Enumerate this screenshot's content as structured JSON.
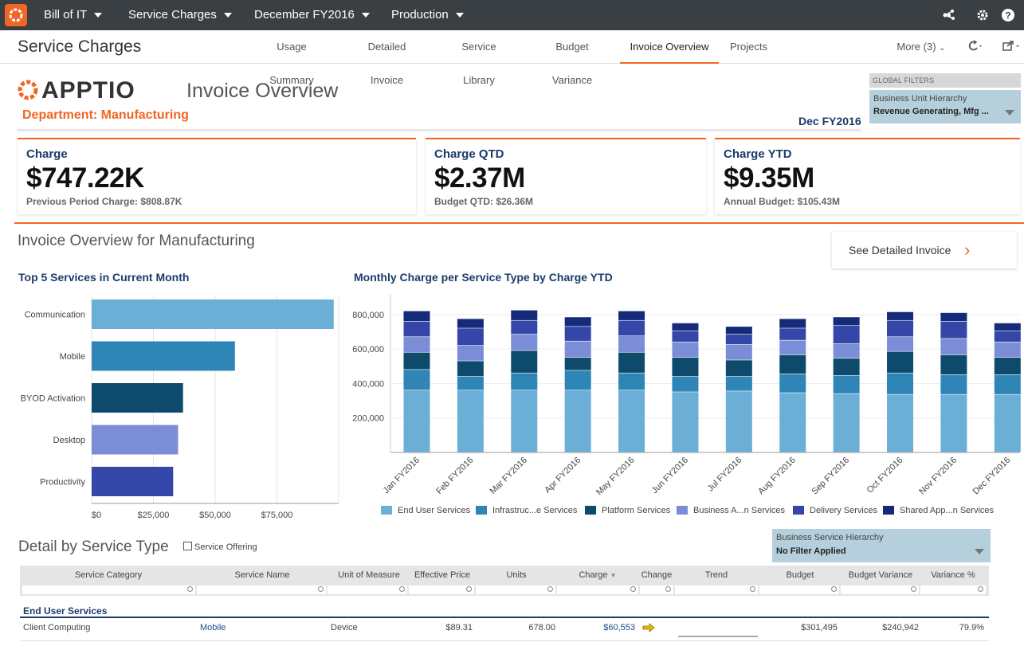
{
  "topbar": {
    "nav": [
      "Bill of IT",
      "Service Charges",
      "December FY2016",
      "Production"
    ],
    "icons": [
      "apptio-logo-icon",
      "caret-down-icon",
      "network-icon",
      "gear-icon",
      "help-icon"
    ]
  },
  "subbar": {
    "title": "Service Charges",
    "tabs": [
      "Usage Summary",
      "Detailed Invoice",
      "Service Library",
      "Budget Variance",
      "Invoice Overview",
      "Projects"
    ],
    "active_tab": "Invoice Overview",
    "more": "More (3)"
  },
  "header": {
    "brand": "APPTIO",
    "page_title": "Invoice Overview",
    "department": "Department: Manufacturing",
    "period": "Dec FY2016"
  },
  "global_filters": {
    "label": "GLOBAL FILTERS",
    "filter_label": "Business Unit Hierarchy",
    "filter_value": "Revenue Generating, Mfg ..."
  },
  "kpis": [
    {
      "label": "Charge",
      "value": "$747.22K",
      "sub": "Previous Period Charge: $808.87K"
    },
    {
      "label": "Charge QTD",
      "value": "$2.37M",
      "sub": "Budget QTD: $26.36M"
    },
    {
      "label": "Charge YTD",
      "value": "$9.35M",
      "sub": "Annual Budget: $105.43M"
    }
  ],
  "overview": {
    "title": "Invoice Overview for Manufacturing",
    "detail_button": "See Detailed Invoice"
  },
  "chart_data": [
    {
      "type": "bar",
      "orientation": "horizontal",
      "title": "Top 5 Services in Current Month",
      "categories": [
        "Communication",
        "Mobile",
        "BYOD Activation",
        "Desktop",
        "Productivity"
      ],
      "values": [
        98000,
        58000,
        37000,
        35000,
        33000
      ],
      "colors": [
        "#6baed6",
        "#2f86b6",
        "#0d4a6b",
        "#7b8dd6",
        "#3447a8"
      ],
      "xticks": [
        "$0",
        "$25,000",
        "$50,000",
        "$75,000"
      ],
      "xlim": [
        0,
        100000
      ]
    },
    {
      "type": "bar",
      "stacked": true,
      "title": "Monthly Charge per Service Type by Charge YTD",
      "categories": [
        "Jan FY2016",
        "Feb FY2016",
        "Mar FY2016",
        "Apr FY2016",
        "May FY2016",
        "Jun FY2016",
        "Jul FY2016",
        "Aug FY2016",
        "Sep FY2016",
        "Oct FY2016",
        "Nov FY2016",
        "Dec FY2016"
      ],
      "yticks": [
        "200,000",
        "400,000",
        "600,000",
        "800,000"
      ],
      "ylim": [
        0,
        860000
      ],
      "series": [
        {
          "name": "End User Services",
          "color": "#6baed6",
          "values": [
            360000,
            360000,
            360000,
            360000,
            360000,
            350000,
            355000,
            345000,
            340000,
            335000,
            335000,
            335000
          ]
        },
        {
          "name": "Infrastruc...e Services",
          "color": "#2f86b6",
          "values": [
            120000,
            80000,
            100000,
            115000,
            100000,
            90000,
            85000,
            110000,
            105000,
            125000,
            115000,
            115000
          ]
        },
        {
          "name": "Platform Services",
          "color": "#0d4a6b",
          "values": [
            100000,
            90000,
            130000,
            75000,
            120000,
            110000,
            95000,
            110000,
            100000,
            125000,
            115000,
            100000
          ]
        },
        {
          "name": "Business A...n Services",
          "color": "#7b8dd6",
          "values": [
            90000,
            90000,
            95000,
            95000,
            95000,
            90000,
            90000,
            85000,
            85000,
            85000,
            95000,
            90000
          ]
        },
        {
          "name": "Delivery Services",
          "color": "#3447a8",
          "values": [
            90000,
            100000,
            80000,
            85000,
            90000,
            65000,
            60000,
            70000,
            105000,
            95000,
            100000,
            65000
          ]
        },
        {
          "name": "Shared App...n Services",
          "color": "#152a78",
          "values": [
            60000,
            55000,
            60000,
            55000,
            55000,
            45000,
            45000,
            55000,
            50000,
            50000,
            50000,
            45000
          ]
        }
      ],
      "legend_position": "bottom"
    }
  ],
  "detail": {
    "title": "Detail by Service Type",
    "checkbox_label": "Service Offering",
    "filter_label": "Business Service Hierarchy",
    "filter_value": "No Filter Applied",
    "columns": [
      "Service Category",
      "Service Name",
      "Unit of Measure",
      "Effective Price",
      "Units",
      "Charge",
      "Change",
      "Trend",
      "Budget",
      "Budget Variance",
      "Variance %"
    ],
    "group": "End User Services",
    "rows": [
      {
        "category": "Client Computing",
        "name": "Mobile",
        "unit": "Device",
        "price": "$89.31",
        "units": "678.00",
        "charge": "$60,553",
        "budget": "$301,495",
        "variance": "$240,942",
        "pct": "79.9%"
      }
    ]
  }
}
